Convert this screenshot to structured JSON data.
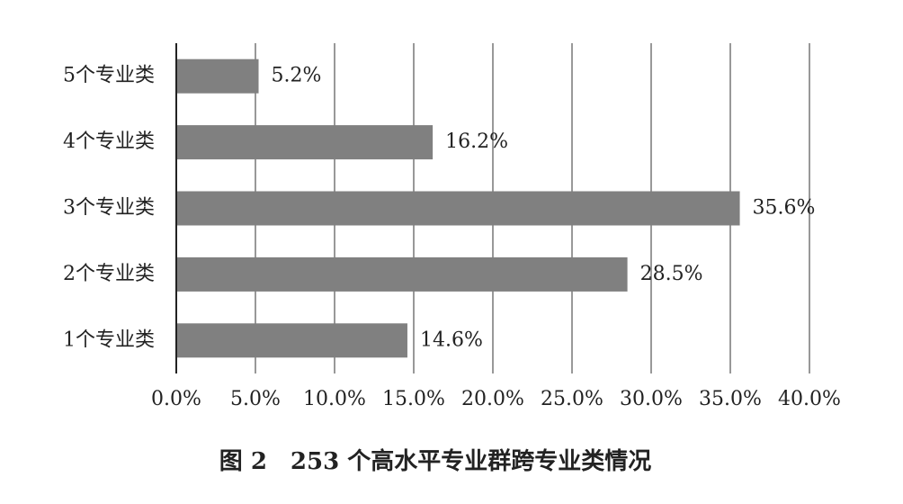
{
  "chart_data": {
    "type": "hbar",
    "title": "图 2　253 个高水平专业群跨专业类情况",
    "categories": [
      "5个专业类",
      "4个专业类",
      "3个专业类",
      "2个专业类",
      "1个专业类"
    ],
    "values": [
      5.2,
      16.2,
      35.6,
      28.5,
      14.6
    ],
    "value_labels": [
      "5.2%",
      "16.2%",
      "35.6%",
      "28.5%",
      "14.6%"
    ],
    "color": "#808080",
    "xlim": [
      0,
      40
    ],
    "xticks": [
      {
        "value": 0,
        "label": "0.0%"
      },
      {
        "value": 5,
        "label": "5.0%"
      },
      {
        "value": 10,
        "label": "10.0%"
      },
      {
        "value": 15,
        "label": "15.0%"
      },
      {
        "value": 20,
        "label": "20.0%"
      },
      {
        "value": 25,
        "label": "25.0%"
      },
      {
        "value": 30,
        "label": "30.0%"
      },
      {
        "value": 35,
        "label": "35.0%"
      },
      {
        "value": 40,
        "label": "40.0%"
      }
    ],
    "grid": true
  }
}
